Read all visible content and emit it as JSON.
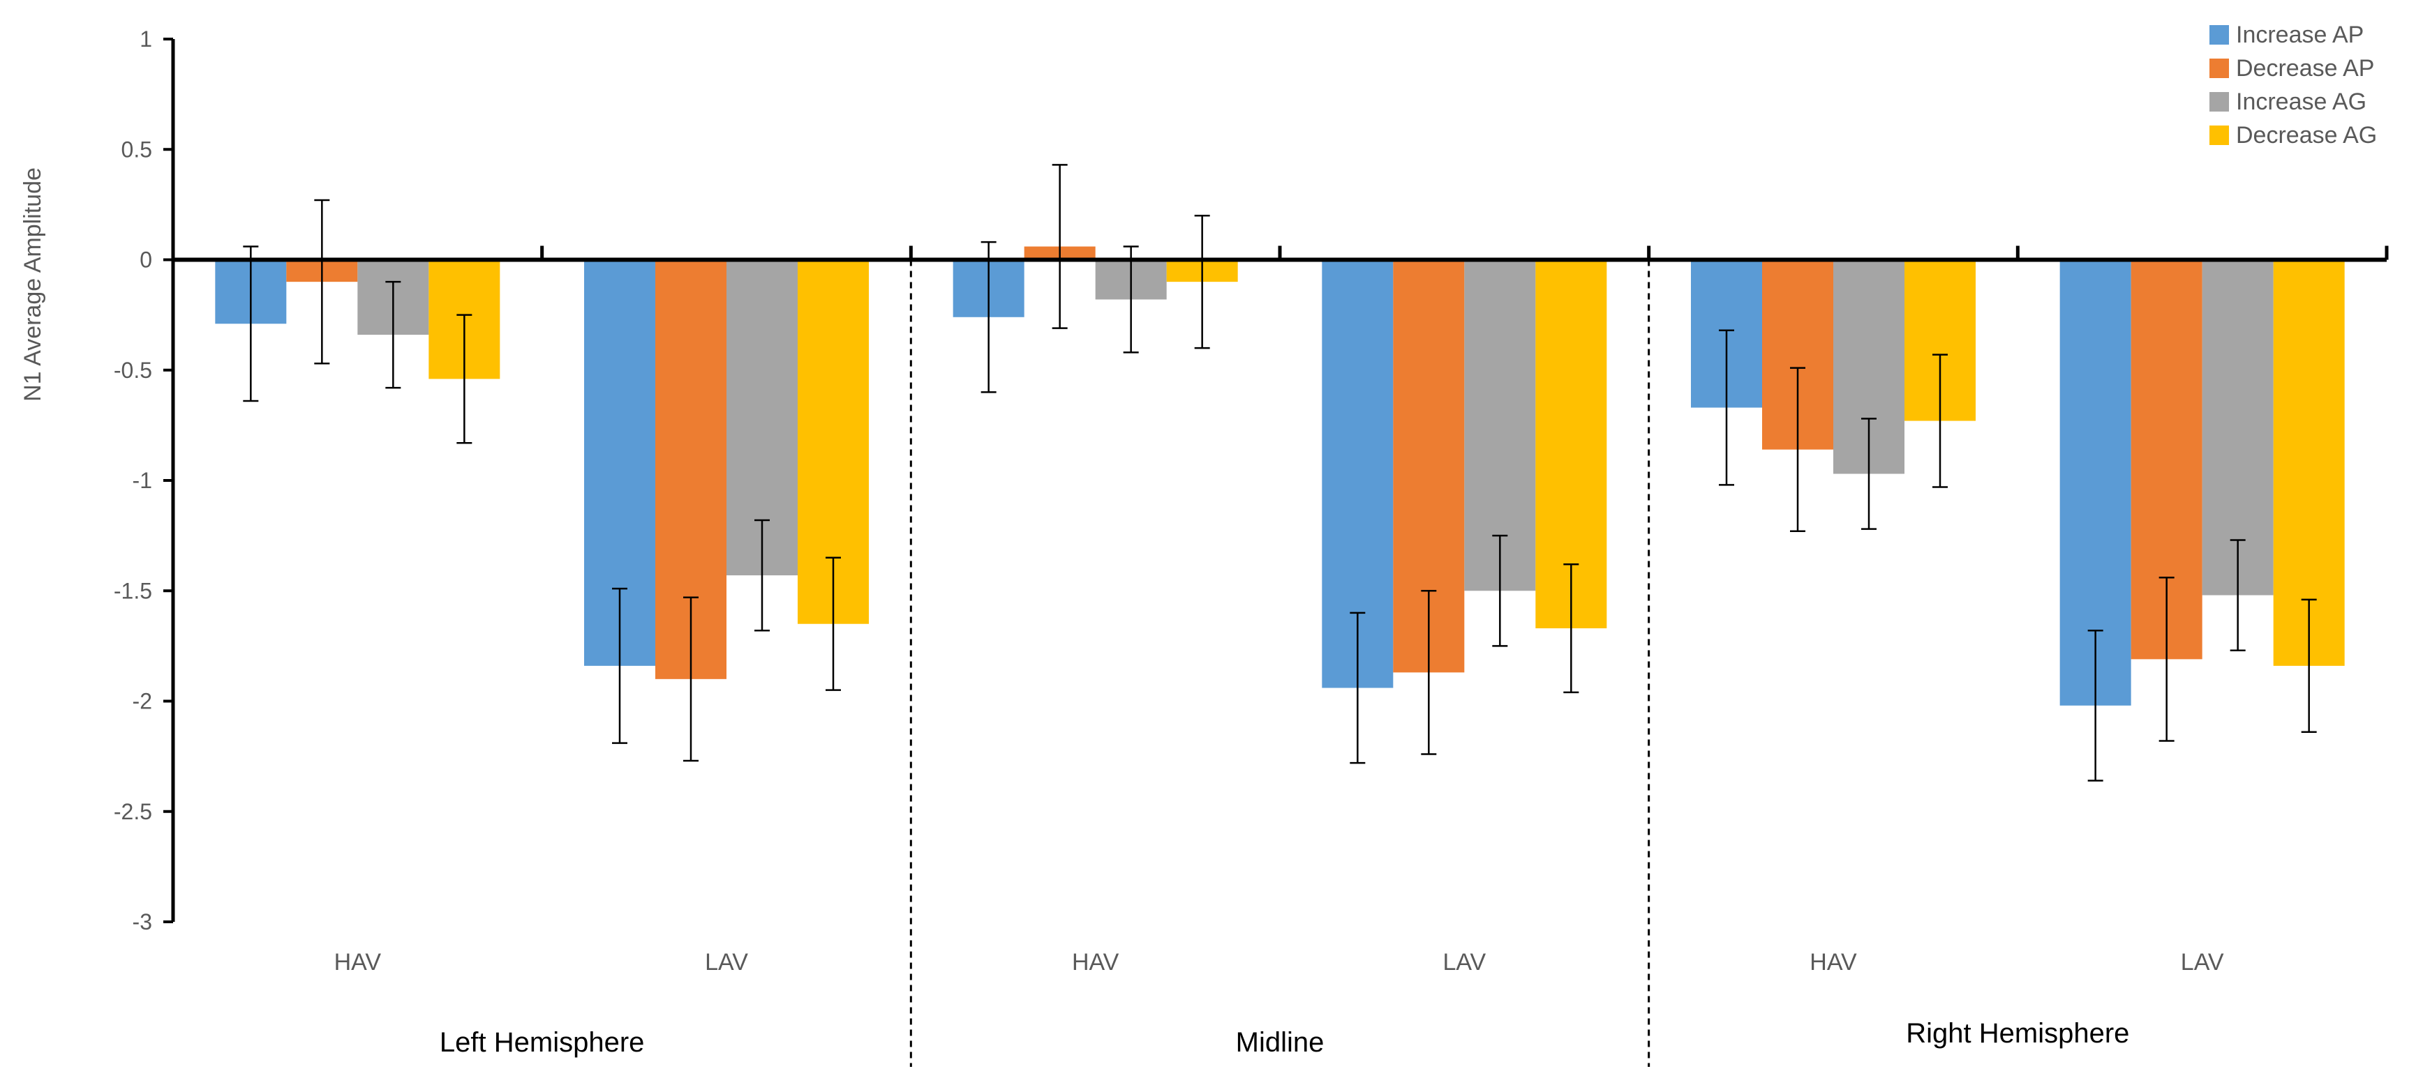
{
  "chart_data": {
    "type": "bar",
    "title": "",
    "xlabel": "",
    "ylabel": "N1 Average Amplitude",
    "ylim": [
      -3,
      1
    ],
    "yticks": [
      1,
      0.5,
      0,
      -0.5,
      -1,
      -1.5,
      -2,
      -2.5,
      -3
    ],
    "ytick_labels": [
      "1",
      "0.5",
      "0",
      "-0.5",
      "-1",
      "-1.5",
      "-2",
      "-2.5",
      "-3"
    ],
    "legend_position": "top-right",
    "groups": [
      {
        "label": "Left Hemisphere",
        "categories": [
          "HAV",
          "LAV"
        ]
      },
      {
        "label": "Midline",
        "categories": [
          "HAV",
          "LAV"
        ]
      },
      {
        "label": "Right Hemisphere",
        "categories": [
          "HAV",
          "LAV"
        ]
      }
    ],
    "categories": [
      "HAV",
      "LAV",
      "HAV",
      "LAV",
      "HAV",
      "LAV"
    ],
    "series": [
      {
        "name": "Increase AP",
        "color": "#5B9BD5",
        "values": [
          -0.29,
          -1.84,
          -0.26,
          -1.94,
          -0.67,
          -2.02
        ],
        "errors": [
          0.35,
          0.35,
          0.34,
          0.34,
          0.35,
          0.34
        ]
      },
      {
        "name": "Decrease AP",
        "color": "#ED7D31",
        "values": [
          -0.1,
          -1.9,
          0.06,
          -1.87,
          -0.86,
          -1.81
        ],
        "errors": [
          0.37,
          0.37,
          0.37,
          0.37,
          0.37,
          0.37
        ]
      },
      {
        "name": "Increase AG",
        "color": "#A5A5A5",
        "values": [
          -0.34,
          -1.43,
          -0.18,
          -1.5,
          -0.97,
          -1.52
        ],
        "errors": [
          0.24,
          0.25,
          0.24,
          0.25,
          0.25,
          0.25
        ]
      },
      {
        "name": "Decrease AG",
        "color": "#FFC000",
        "values": [
          -0.54,
          -1.65,
          -0.1,
          -1.67,
          -0.73,
          -1.84
        ],
        "errors": [
          0.29,
          0.3,
          0.3,
          0.29,
          0.3,
          0.3
        ]
      }
    ]
  }
}
